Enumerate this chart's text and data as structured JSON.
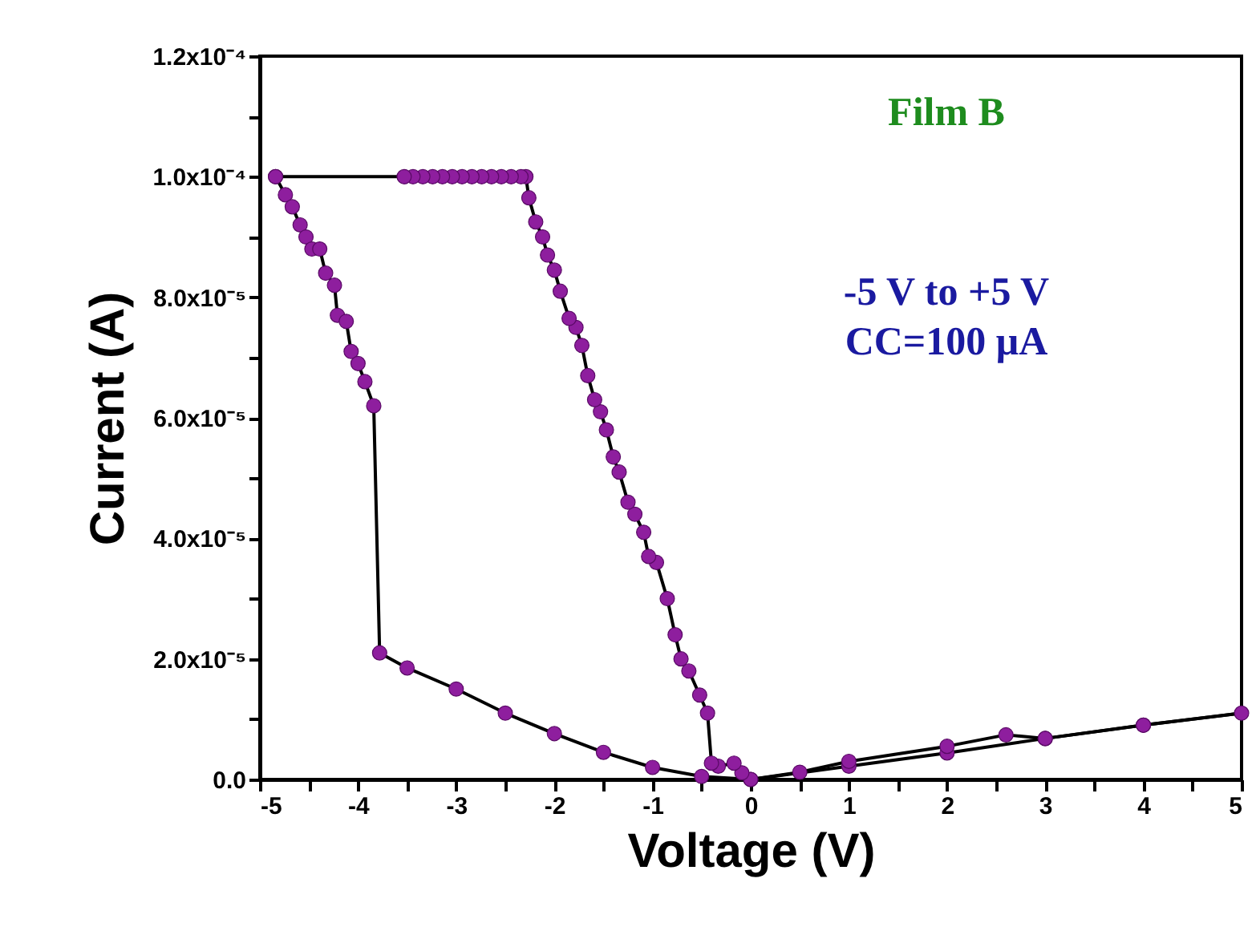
{
  "chart_data": {
    "type": "line",
    "xlabel": "Voltage (V)",
    "ylabel": "Current (A)",
    "annotations": [
      "Film B",
      "-5 V to +5 V",
      "CC=100 μA"
    ],
    "xlim": [
      -5,
      5
    ],
    "ylim": [
      0,
      0.00012
    ],
    "xticks": [
      -5,
      {
        "value": -4.5,
        "label": null
      },
      -4,
      {
        "value": -3.5,
        "label": null
      },
      -3,
      {
        "value": -2.5,
        "label": null
      },
      -2,
      {
        "value": -1.5,
        "label": null
      },
      -1,
      {
        "value": -0.5,
        "label": null
      },
      0,
      {
        "value": 0.5,
        "label": null
      },
      1,
      {
        "value": 1.5,
        "label": null
      },
      2,
      {
        "value": 2.5,
        "label": null
      },
      3,
      {
        "value": 3.5,
        "label": null
      },
      4,
      {
        "value": 4.5,
        "label": null
      },
      5
    ],
    "yticks": [
      {
        "value": 0,
        "label": "0.0"
      },
      {
        "value": 1e-05,
        "label": null
      },
      {
        "value": 2e-05,
        "label": "2.0x10⁻⁵"
      },
      {
        "value": 3e-05,
        "label": null
      },
      {
        "value": 4e-05,
        "label": "4.0x10⁻⁵"
      },
      {
        "value": 5e-05,
        "label": null
      },
      {
        "value": 6e-05,
        "label": "6.0x10⁻⁵"
      },
      {
        "value": 7e-05,
        "label": null
      },
      {
        "value": 8e-05,
        "label": "8.0x10⁻⁵"
      },
      {
        "value": 9e-05,
        "label": null
      },
      {
        "value": 0.0001,
        "label": "1.0x10⁻⁴"
      },
      {
        "value": 0.00011,
        "label": null
      },
      {
        "value": 0.00012,
        "label": "1.2x10⁻⁴"
      }
    ],
    "grid": false,
    "line_style": "solid",
    "series": [
      {
        "color": "#000000",
        "type": "line",
        "x": [
          -4.84,
          -4.74,
          -4.67,
          -4.59,
          -4.53,
          -4.47,
          -4.39,
          -4.33,
          -4.24,
          -4.21,
          -4.12,
          -4.07,
          -4.0,
          -3.93,
          -3.84,
          -3.78,
          -3.5,
          -3.0,
          -2.5,
          -2.0,
          -1.5,
          -1.0,
          -0.5,
          0,
          1,
          2,
          3,
          4,
          5
        ],
        "values": [
          0.0001,
          9.7e-05,
          9.5e-05,
          9.2e-05,
          9e-05,
          8.8e-05,
          8.8e-05,
          8.4e-05,
          8.2e-05,
          7.7e-05,
          7.6e-05,
          7.1e-05,
          6.9e-05,
          6.6e-05,
          6.2e-05,
          2.1e-05,
          1.85e-05,
          1.5e-05,
          1.1e-05,
          7.6e-06,
          4.5e-06,
          2e-06,
          5e-07,
          0,
          2.2e-06,
          4.4e-06,
          6.8e-06,
          9e-06,
          1.1e-05
        ]
      },
      {
        "color": "#000000",
        "type": "line",
        "x": [
          5,
          4,
          3,
          2.6,
          2,
          1,
          0.5,
          0,
          -0.09,
          -0.17,
          -0.33,
          -0.4,
          -0.44,
          -0.52,
          -0.63,
          -0.71,
          -0.77,
          -0.85,
          -0.96,
          -1.04,
          -1.09,
          -1.18,
          -1.25,
          -1.34,
          -1.4,
          -1.47,
          -1.53,
          -1.59,
          -1.66,
          -1.72,
          -1.78,
          -1.85,
          -1.94,
          -2.0,
          -2.07,
          -2.12,
          -2.19,
          -2.26,
          -2.29,
          -2.34,
          -2.44,
          -2.54,
          -2.64,
          -2.74,
          -2.84,
          -2.94,
          -3.04,
          -3.14,
          -3.24,
          -3.34,
          -3.44,
          -3.53,
          -4.84
        ],
        "values": [
          1.1e-05,
          9e-06,
          6.8e-06,
          7.4e-06,
          5.5e-06,
          3e-06,
          1.2e-06,
          0,
          1.1e-06,
          2.7e-06,
          2.2e-06,
          2.7e-06,
          1.1e-05,
          1.4e-05,
          1.8e-05,
          2e-05,
          2.4e-05,
          3e-05,
          3.6e-05,
          3.7e-05,
          4.1e-05,
          4.4e-05,
          4.6e-05,
          5.1e-05,
          5.35e-05,
          5.8e-05,
          6.1e-05,
          6.3e-05,
          6.7e-05,
          7.2e-05,
          7.5e-05,
          7.65e-05,
          8.1e-05,
          8.45e-05,
          8.7e-05,
          9e-05,
          9.25e-05,
          9.65e-05,
          0.0001,
          0.0001,
          0.0001,
          0.0001,
          0.0001,
          0.0001,
          0.0001,
          0.0001,
          0.0001,
          0.0001,
          0.0001,
          0.0001,
          0.0001,
          0.0001,
          0.0001
        ]
      },
      {
        "color": "#8e1e9e",
        "type": "scatter",
        "marker": "circle",
        "x": [
          -4.84,
          -4.74,
          -4.67,
          -4.59,
          -4.53,
          -4.47,
          -4.39,
          -4.33,
          -4.24,
          -4.21,
          -4.12,
          -4.07,
          -4.0,
          -3.93,
          -3.84,
          -3.78,
          -3.5,
          -3.0,
          -2.5,
          -2.0,
          -1.5,
          -1.0,
          -0.5,
          0,
          1,
          2,
          3,
          4,
          5,
          4,
          3,
          2.6,
          2,
          1,
          0.5,
          0,
          -0.09,
          -0.17,
          -0.33,
          -0.4,
          -0.44,
          -0.52,
          -0.63,
          -0.71,
          -0.77,
          -0.85,
          -0.96,
          -1.04,
          -1.09,
          -1.18,
          -1.25,
          -1.34,
          -1.4,
          -1.47,
          -1.53,
          -1.59,
          -1.66,
          -1.72,
          -1.78,
          -1.85,
          -1.94,
          -2.0,
          -2.07,
          -2.12,
          -2.19,
          -2.26,
          -2.29,
          -2.34,
          -2.44,
          -2.54,
          -2.64,
          -2.74,
          -2.84,
          -2.94,
          -3.04,
          -3.14,
          -3.24,
          -3.34,
          -3.44,
          -3.53,
          -4.84
        ],
        "values": [
          0.0001,
          9.7e-05,
          9.5e-05,
          9.2e-05,
          9e-05,
          8.8e-05,
          8.8e-05,
          8.4e-05,
          8.2e-05,
          7.7e-05,
          7.6e-05,
          7.1e-05,
          6.9e-05,
          6.6e-05,
          6.2e-05,
          2.1e-05,
          1.85e-05,
          1.5e-05,
          1.1e-05,
          7.6e-06,
          4.5e-06,
          2e-06,
          5e-07,
          0,
          2.2e-06,
          4.4e-06,
          6.8e-06,
          9e-06,
          1.1e-05,
          9e-06,
          6.8e-06,
          7.4e-06,
          5.5e-06,
          3e-06,
          1.2e-06,
          0,
          1.1e-06,
          2.7e-06,
          2.2e-06,
          2.7e-06,
          1.1e-05,
          1.4e-05,
          1.8e-05,
          2e-05,
          2.4e-05,
          3e-05,
          3.6e-05,
          3.7e-05,
          4.1e-05,
          4.4e-05,
          4.6e-05,
          5.1e-05,
          5.35e-05,
          5.8e-05,
          6.1e-05,
          6.3e-05,
          6.7e-05,
          7.2e-05,
          7.5e-05,
          7.65e-05,
          8.1e-05,
          8.45e-05,
          8.7e-05,
          9e-05,
          9.25e-05,
          9.65e-05,
          0.0001,
          0.0001,
          0.0001,
          0.0001,
          0.0001,
          0.0001,
          0.0001,
          0.0001,
          0.0001,
          0.0001,
          0.0001,
          0.0001,
          0.0001,
          0.0001,
          0.0001
        ]
      }
    ]
  }
}
